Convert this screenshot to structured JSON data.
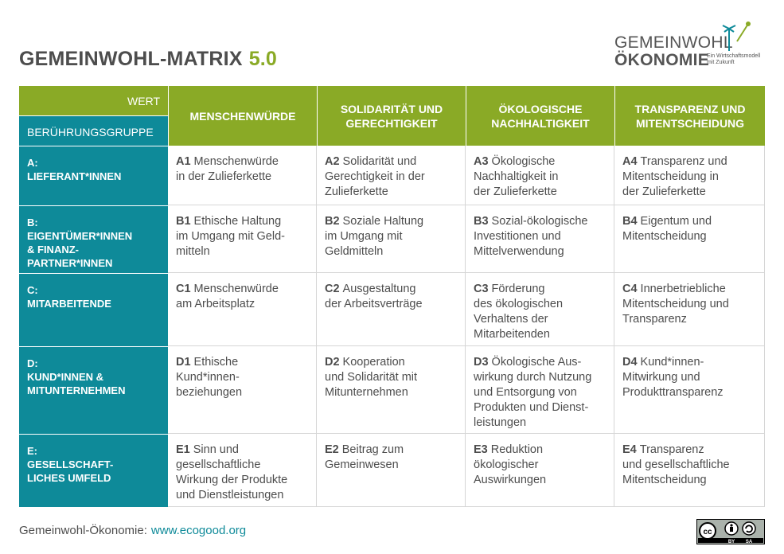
{
  "header": {
    "title": "GEMEINWOHL-MATRIX",
    "version": "5.0",
    "logo": {
      "line1": "GEMEINWOHL",
      "line2": "ÖKONOMIE",
      "tagline": "Ein Wirtschaftsmodell\nmit Zukunft"
    }
  },
  "table": {
    "corner_top": "WERT",
    "corner_bottom": "BERÜHRUNGSGRUPPE",
    "columns": [
      "MENSCHENWÜRDE",
      "SOLIDARITÄT UND\nGERECHTIGKEIT",
      "ÖKOLOGISCHE\nNACHHALTIGKEIT",
      "TRANSPARENZ UND\nMITENTSCHEIDUNG"
    ],
    "rows": [
      {
        "label": "A:\nLIEFERANT*INNEN",
        "cells": [
          {
            "code": "A1",
            "text": "Menschenwürde\nin der Zulieferkette"
          },
          {
            "code": "A2",
            "text": "Solidarität und\nGerechtigkeit in der\nZulieferkette"
          },
          {
            "code": "A3",
            "text": "Ökologische\nNachhaltigkeit in\nder Zulieferkette"
          },
          {
            "code": "A4",
            "text": "Transparenz und\nMitentscheidung in\nder Zulieferkette"
          }
        ]
      },
      {
        "label": "B:\nEIGENTÜMER*INNEN\n& FINANZ-\nPARTNER*INNEN",
        "cells": [
          {
            "code": "B1",
            "text": "Ethische Haltung\nim Umgang mit Geld-\nmitteln"
          },
          {
            "code": "B2",
            "text": "Soziale Haltung\nim Umgang mit\nGeldmitteln"
          },
          {
            "code": "B3",
            "text": "Sozial-ökologische\nInvestitionen und\nMittelverwendung"
          },
          {
            "code": "B4",
            "text": "Eigentum und\nMitentscheidung"
          }
        ]
      },
      {
        "label": "C:\nMITARBEITENDE",
        "cells": [
          {
            "code": "C1",
            "text": "Menschenwürde\nam Arbeitsplatz"
          },
          {
            "code": "C2",
            "text": "Ausgestaltung\nder Arbeitsverträge"
          },
          {
            "code": "C3",
            "text": "Förderung\ndes ökologischen\nVerhaltens der\nMitarbeitenden"
          },
          {
            "code": "C4",
            "text": "Innerbetriebliche\nMitentscheidung und\nTransparenz"
          }
        ]
      },
      {
        "label": "D:\nKUND*INNEN &\nMITUNTERNEHMEN",
        "cells": [
          {
            "code": "D1",
            "text": "Ethische\nKund*innen-\nbeziehungen"
          },
          {
            "code": "D2",
            "text": "Kooperation\nund Solidarität mit\nMitunternehmen"
          },
          {
            "code": "D3",
            "text": "Ökologische Aus-\nwirkung durch Nutzung\nund Entsorgung von\nProdukten und Dienst-\nleistungen"
          },
          {
            "code": "D4",
            "text": "Kund*innen-\nMitwirkung und\nProdukttransparenz"
          }
        ]
      },
      {
        "label": "E:\nGESELLSCHAFT-\nLICHES UMFELD",
        "cells": [
          {
            "code": "E1",
            "text": "Sinn und\ngesellschaftliche\nWirkung der Produkte\nund Dienstleistungen"
          },
          {
            "code": "E2",
            "text": "Beitrag zum\nGemeinwesen"
          },
          {
            "code": "E3",
            "text": "Reduktion\nökologischer\nAuswirkungen"
          },
          {
            "code": "E4",
            "text": "Transparenz\nund gesellschaftliche\nMitentscheidung"
          }
        ]
      }
    ]
  },
  "footer": {
    "label": "Gemeinwohl-Ökonomie:",
    "link": "www.ecogood.org",
    "license": [
      "BY",
      "SA"
    ]
  }
}
